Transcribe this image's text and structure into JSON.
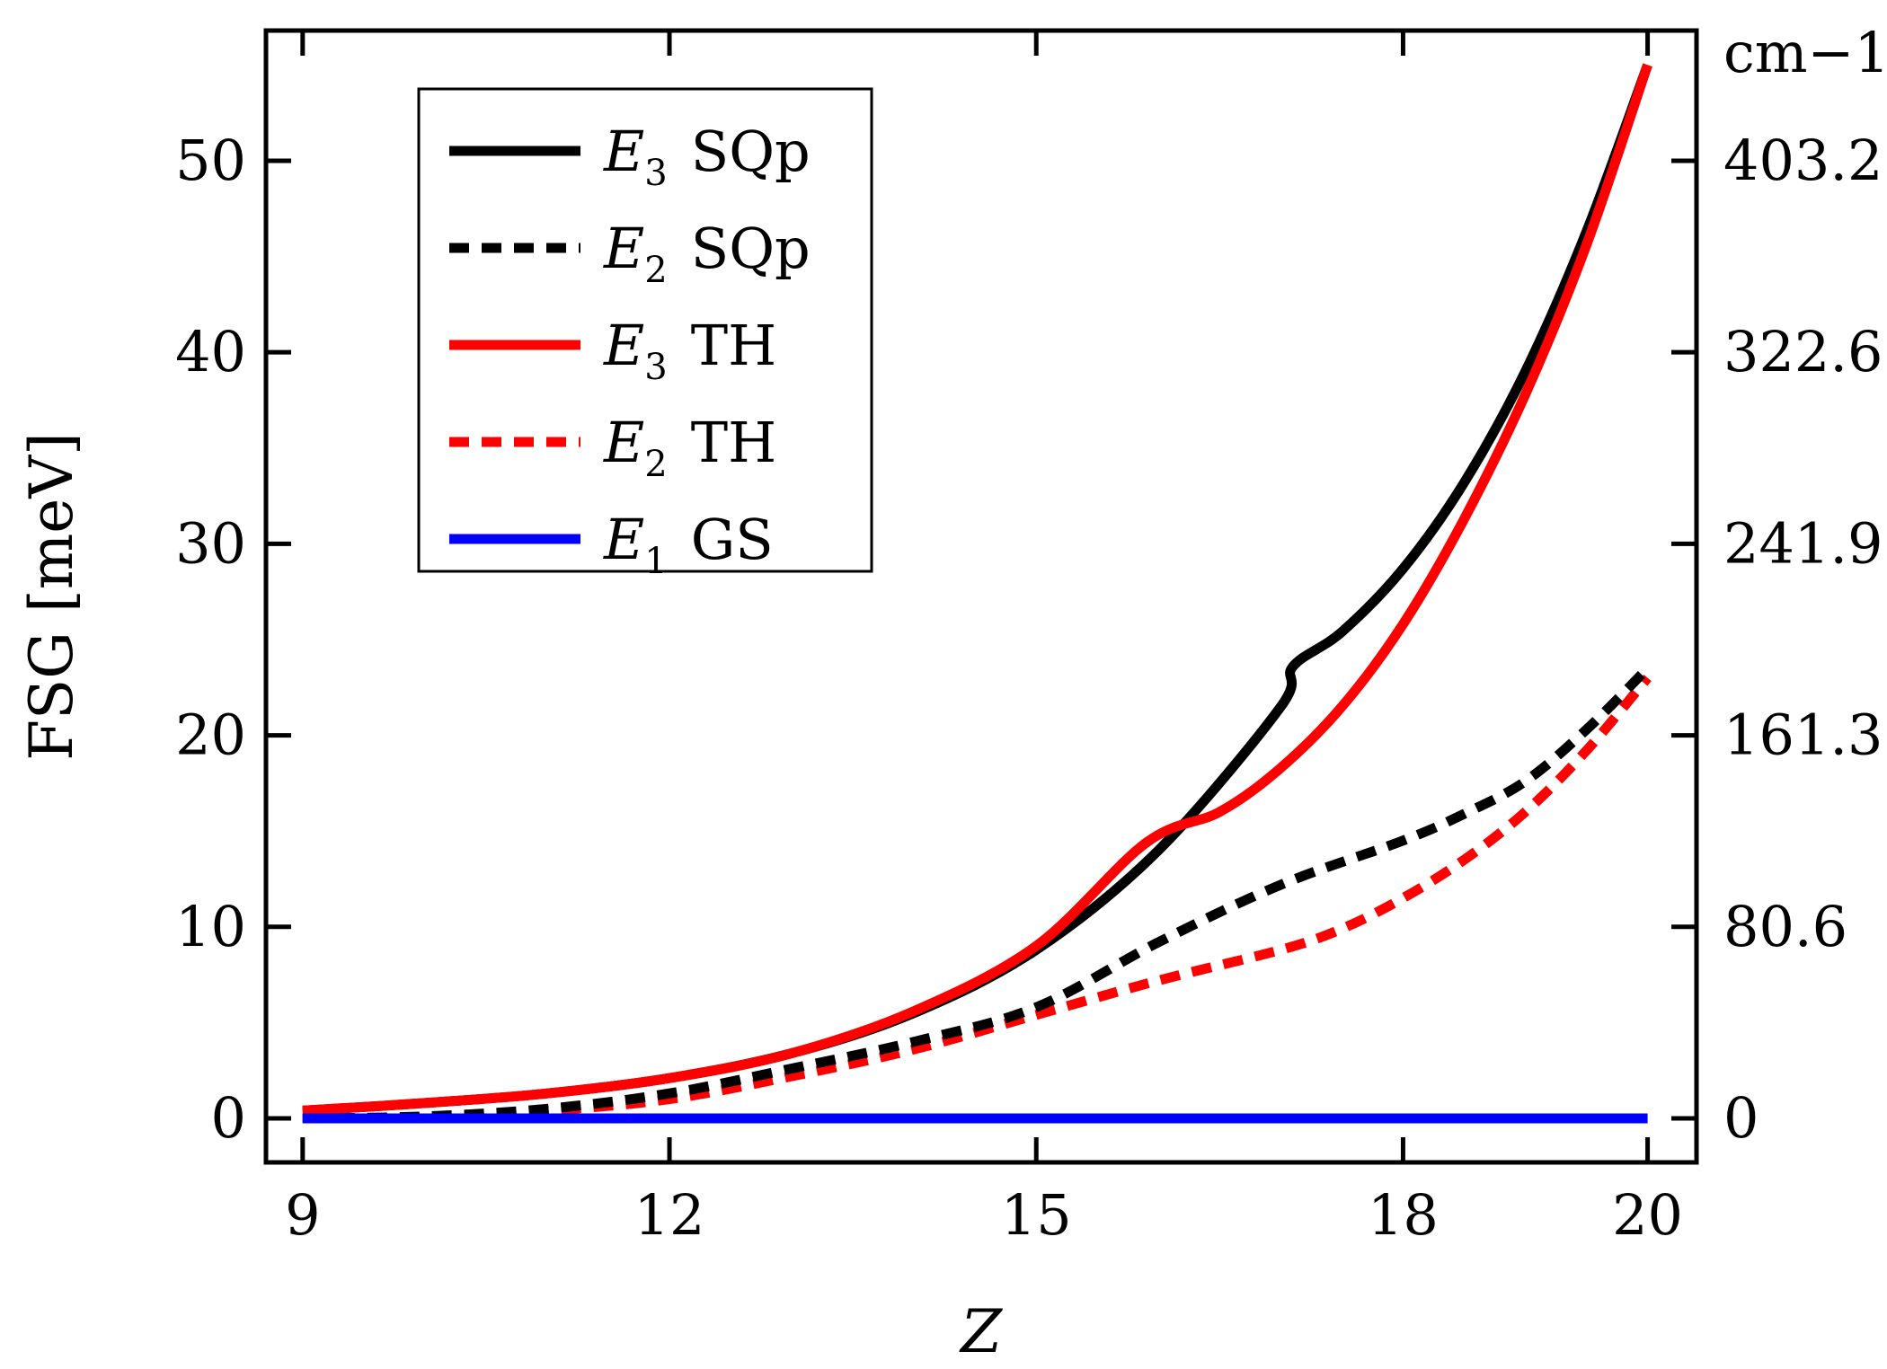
{
  "chart_data": {
    "type": "line",
    "xlabel": "Z",
    "ylabel": "FSG [meV]",
    "y2label": "cm−1",
    "xlim": [
      8.7,
      20.4
    ],
    "ylim": [
      -2.3,
      56.8
    ],
    "xticks": [
      9,
      12,
      15,
      18,
      20
    ],
    "xtick_labels": [
      "9",
      "12",
      "15",
      "18",
      "20"
    ],
    "yticks": [
      0,
      10,
      20,
      30,
      40,
      50
    ],
    "ytick_labels": [
      "0",
      "10",
      "20",
      "30",
      "40",
      "50"
    ],
    "y2ticks": [
      0,
      10,
      20,
      30,
      40,
      50
    ],
    "y2tick_labels": [
      "0",
      "80.6",
      "161.3",
      "241.9",
      "322.6",
      "403.2"
    ],
    "legend_position": "top-left",
    "series": [
      {
        "name": "E3 SQp",
        "sym": "E",
        "sub": "3",
        "label": "SQp",
        "color": "#000000",
        "style": "solid",
        "x": [
          9,
          10,
          11,
          12,
          13,
          14,
          15,
          16,
          17,
          17.1,
          17.5,
          18,
          18.5,
          19,
          19.5,
          20
        ],
        "y": [
          0.4,
          0.8,
          1.3,
          2.1,
          3.4,
          5.5,
          8.8,
          14.0,
          21.5,
          23.6,
          25.4,
          28.7,
          33.2,
          39.0,
          46.3,
          55.0
        ]
      },
      {
        "name": "E2 SQp",
        "sym": "E",
        "sub": "2",
        "label": "SQp",
        "color": "#000000",
        "style": "dashed",
        "x": [
          9,
          10,
          11,
          12,
          13,
          14,
          15,
          16,
          17,
          18,
          18.5,
          19,
          19.5,
          20
        ],
        "y": [
          0.0,
          0.1,
          0.5,
          1.3,
          2.6,
          4.0,
          5.8,
          9.2,
          12.2,
          14.5,
          15.9,
          17.6,
          20.3,
          23.5
        ]
      },
      {
        "name": "E3 TH",
        "sym": "E",
        "sub": "3",
        "label": "TH",
        "color": "#ff0000",
        "style": "solid",
        "x": [
          9,
          10,
          11,
          12,
          13,
          14,
          15,
          15.9,
          16.5,
          17,
          17.5,
          18,
          18.5,
          19,
          19.5,
          20
        ],
        "y": [
          0.4,
          0.8,
          1.3,
          2.1,
          3.4,
          5.6,
          9.0,
          14.4,
          16.0,
          18.3,
          21.5,
          25.8,
          31.3,
          37.8,
          45.6,
          55.0
        ]
      },
      {
        "name": "E2 TH",
        "sym": "E",
        "sub": "2",
        "label": "TH",
        "color": "#ff0000",
        "style": "dashed",
        "x": [
          9,
          10,
          11,
          12,
          13,
          14,
          15,
          16,
          17,
          17.5,
          18,
          18.5,
          19,
          19.5,
          20
        ],
        "y": [
          0.0,
          0.05,
          0.4,
          1.0,
          2.2,
          3.6,
          5.4,
          7.2,
          8.8,
          9.9,
          11.5,
          13.5,
          16.0,
          19.2,
          23.0
        ]
      },
      {
        "name": "E1 GS",
        "sym": "E",
        "sub": "1",
        "label": "GS",
        "color": "#0000ff",
        "style": "solid",
        "x": [
          9,
          20
        ],
        "y": [
          0.0,
          0.0
        ]
      }
    ]
  }
}
